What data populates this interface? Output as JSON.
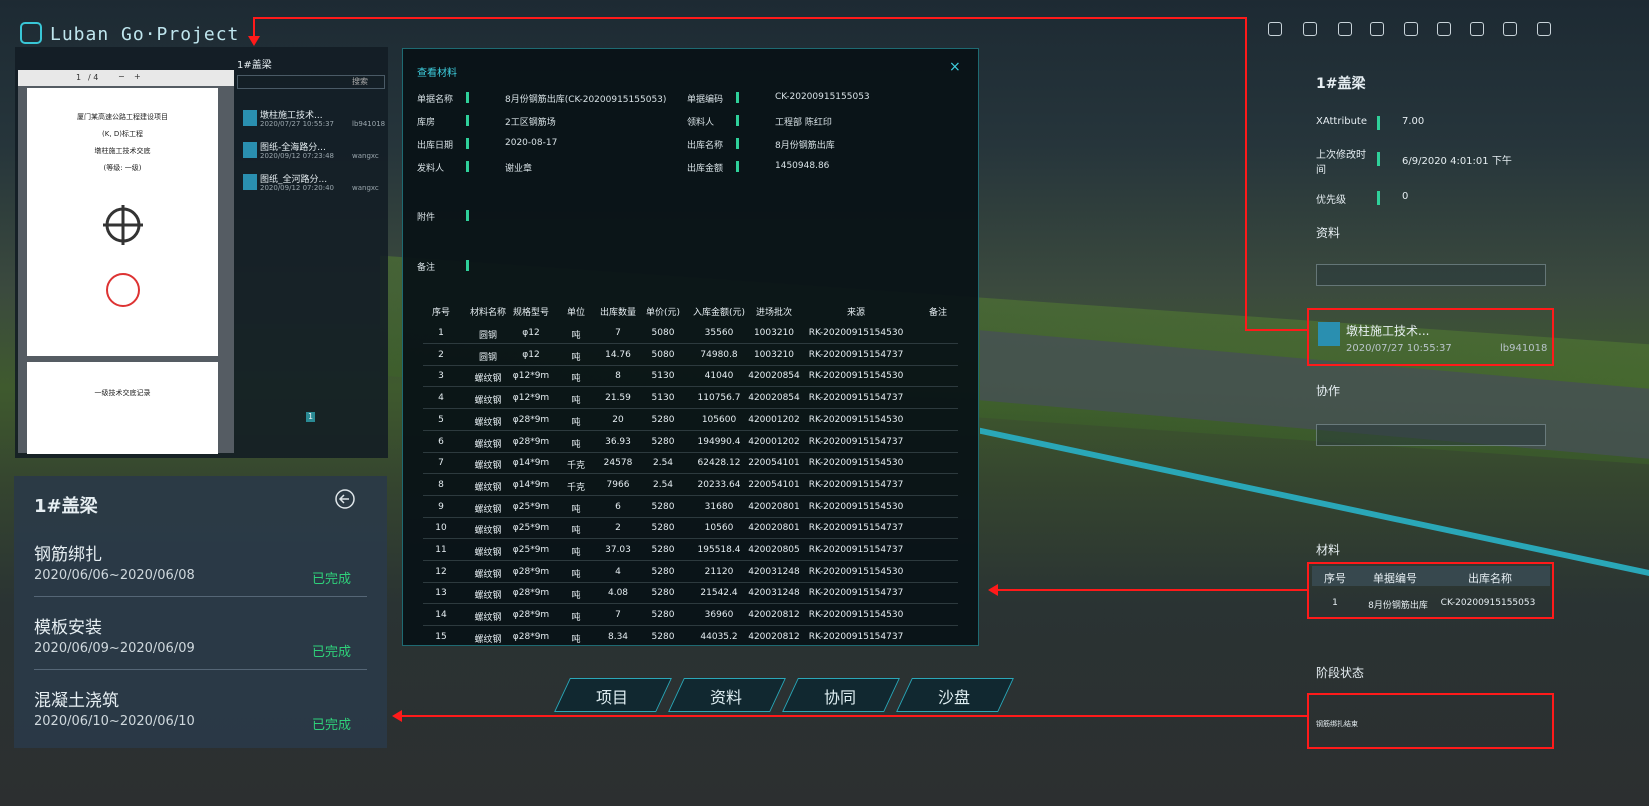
{
  "header": {
    "brand": "Luban Go·Project"
  },
  "pdf_panel": {
    "title": "1#盖梁",
    "toolbar_page": "1",
    "toolbar_total": "/ 4",
    "page_lines": [
      "厦门某高速公路工程建设项目",
      "(K, D)标工程",
      "墩柱施工技术交底",
      "(等级: 一级)"
    ],
    "page2_title": "一级技术交底记录",
    "search_placeholder": "搜索",
    "page_number": "1",
    "files": [
      {
        "name": "墩柱施工技术...",
        "date": "2020/07/27 10:55:37",
        "user": "lb941018"
      },
      {
        "name": "图纸-全海路分...",
        "date": "2020/09/12 07:23:48",
        "user": "wangxc"
      },
      {
        "name": "图纸_全河路分...",
        "date": "2020/09/12 07:20:40",
        "user": "wangxc"
      }
    ]
  },
  "task_panel": {
    "title": "1#盖梁",
    "tasks": [
      {
        "name": "钢筋绑扎",
        "dates": "2020/06/06~2020/06/08",
        "status": "已完成"
      },
      {
        "name": "模板安装",
        "dates": "2020/06/09~2020/06/09",
        "status": "已完成"
      },
      {
        "name": "混凝土浇筑",
        "dates": "2020/06/10~2020/06/10",
        "status": "已完成"
      }
    ]
  },
  "modal": {
    "title": "查看材料",
    "close": "×",
    "fields": [
      {
        "label": "单据名称",
        "value": "8月份钢筋出库(CK-20200915155053)"
      },
      {
        "label": "单据编码",
        "value": "CK-20200915155053"
      },
      {
        "label": "库房",
        "value": "2工区钢筋场"
      },
      {
        "label": "领料人",
        "value": "工程部 陈红印"
      },
      {
        "label": "出库日期",
        "value": "2020-08-17"
      },
      {
        "label": "出库名称",
        "value": "8月份钢筋出库"
      },
      {
        "label": "发料人",
        "value": "谢业章"
      },
      {
        "label": "出库金额",
        "value": "1450948.86"
      }
    ],
    "attach_label": "附件",
    "remark_label": "备注",
    "table": {
      "headers": [
        "序号",
        "材料名称",
        "规格型号",
        "单位",
        "出库数量",
        "单价(元)",
        "入库金额(元)",
        "进场批次",
        "来源",
        "备注"
      ],
      "rows": [
        [
          "1",
          "圆钢",
          "φ12",
          "吨",
          "7",
          "5080",
          "35560",
          "1003210",
          "RK-20200915154530"
        ],
        [
          "2",
          "圆钢",
          "φ12",
          "吨",
          "14.76",
          "5080",
          "74980.8",
          "1003210",
          "RK-20200915154737"
        ],
        [
          "3",
          "螺纹钢",
          "φ12*9m",
          "吨",
          "8",
          "5130",
          "41040",
          "420020854",
          "RK-20200915154530"
        ],
        [
          "4",
          "螺纹钢",
          "φ12*9m",
          "吨",
          "21.59",
          "5130",
          "110756.7",
          "420020854",
          "RK-20200915154737"
        ],
        [
          "5",
          "螺纹钢",
          "φ28*9m",
          "吨",
          "20",
          "5280",
          "105600",
          "420001202",
          "RK-20200915154530"
        ],
        [
          "6",
          "螺纹钢",
          "φ28*9m",
          "吨",
          "36.93",
          "5280",
          "194990.4",
          "420001202",
          "RK-20200915154737"
        ],
        [
          "7",
          "螺纹钢",
          "φ14*9m",
          "千克",
          "24578",
          "2.54",
          "62428.12",
          "220054101",
          "RK-20200915154530"
        ],
        [
          "8",
          "螺纹钢",
          "φ14*9m",
          "千克",
          "7966",
          "2.54",
          "20233.64",
          "220054101",
          "RK-20200915154737"
        ],
        [
          "9",
          "螺纹钢",
          "φ25*9m",
          "吨",
          "6",
          "5280",
          "31680",
          "420020801",
          "RK-20200915154530"
        ],
        [
          "10",
          "螺纹钢",
          "φ25*9m",
          "吨",
          "2",
          "5280",
          "10560",
          "420020801",
          "RK-20200915154737"
        ],
        [
          "11",
          "螺纹钢",
          "φ25*9m",
          "吨",
          "37.03",
          "5280",
          "195518.4",
          "420020805",
          "RK-20200915154737"
        ],
        [
          "12",
          "螺纹钢",
          "φ28*9m",
          "吨",
          "4",
          "5280",
          "21120",
          "420031248",
          "RK-20200915154530"
        ],
        [
          "13",
          "螺纹钢",
          "φ28*9m",
          "吨",
          "4.08",
          "5280",
          "21542.4",
          "420031248",
          "RK-20200915154737"
        ],
        [
          "14",
          "螺纹钢",
          "φ28*9m",
          "吨",
          "7",
          "5280",
          "36960",
          "420020812",
          "RK-20200915154530"
        ],
        [
          "15",
          "螺纹钢",
          "φ28*9m",
          "吨",
          "8.34",
          "5280",
          "44035.2",
          "420020812",
          "RK-20200915154737"
        ]
      ]
    }
  },
  "nav": [
    "项目",
    "资料",
    "协同",
    "沙盘"
  ],
  "right_panel": {
    "title": "1#盖梁",
    "attributes": [
      {
        "label": "XAttribute",
        "value": "7.00"
      },
      {
        "label": "上次修改时间",
        "value": "6/9/2020 4:01:01 下午"
      },
      {
        "label": "优先级",
        "value": "0"
      }
    ],
    "docs_title": "资料",
    "doc": {
      "name": "墩柱施工技术...",
      "date": "2020/07/27 10:55:37",
      "user": "lb941018"
    },
    "collab_title": "协作",
    "materials_title": "材料",
    "materials_headers": [
      "序号",
      "单据编号",
      "出库名称"
    ],
    "materials_row": [
      "1",
      "8月份钢筋出库",
      "CK-20200915155053"
    ],
    "stage_title": "阶段状态",
    "stage_text": "钢筋绑扎结束"
  }
}
